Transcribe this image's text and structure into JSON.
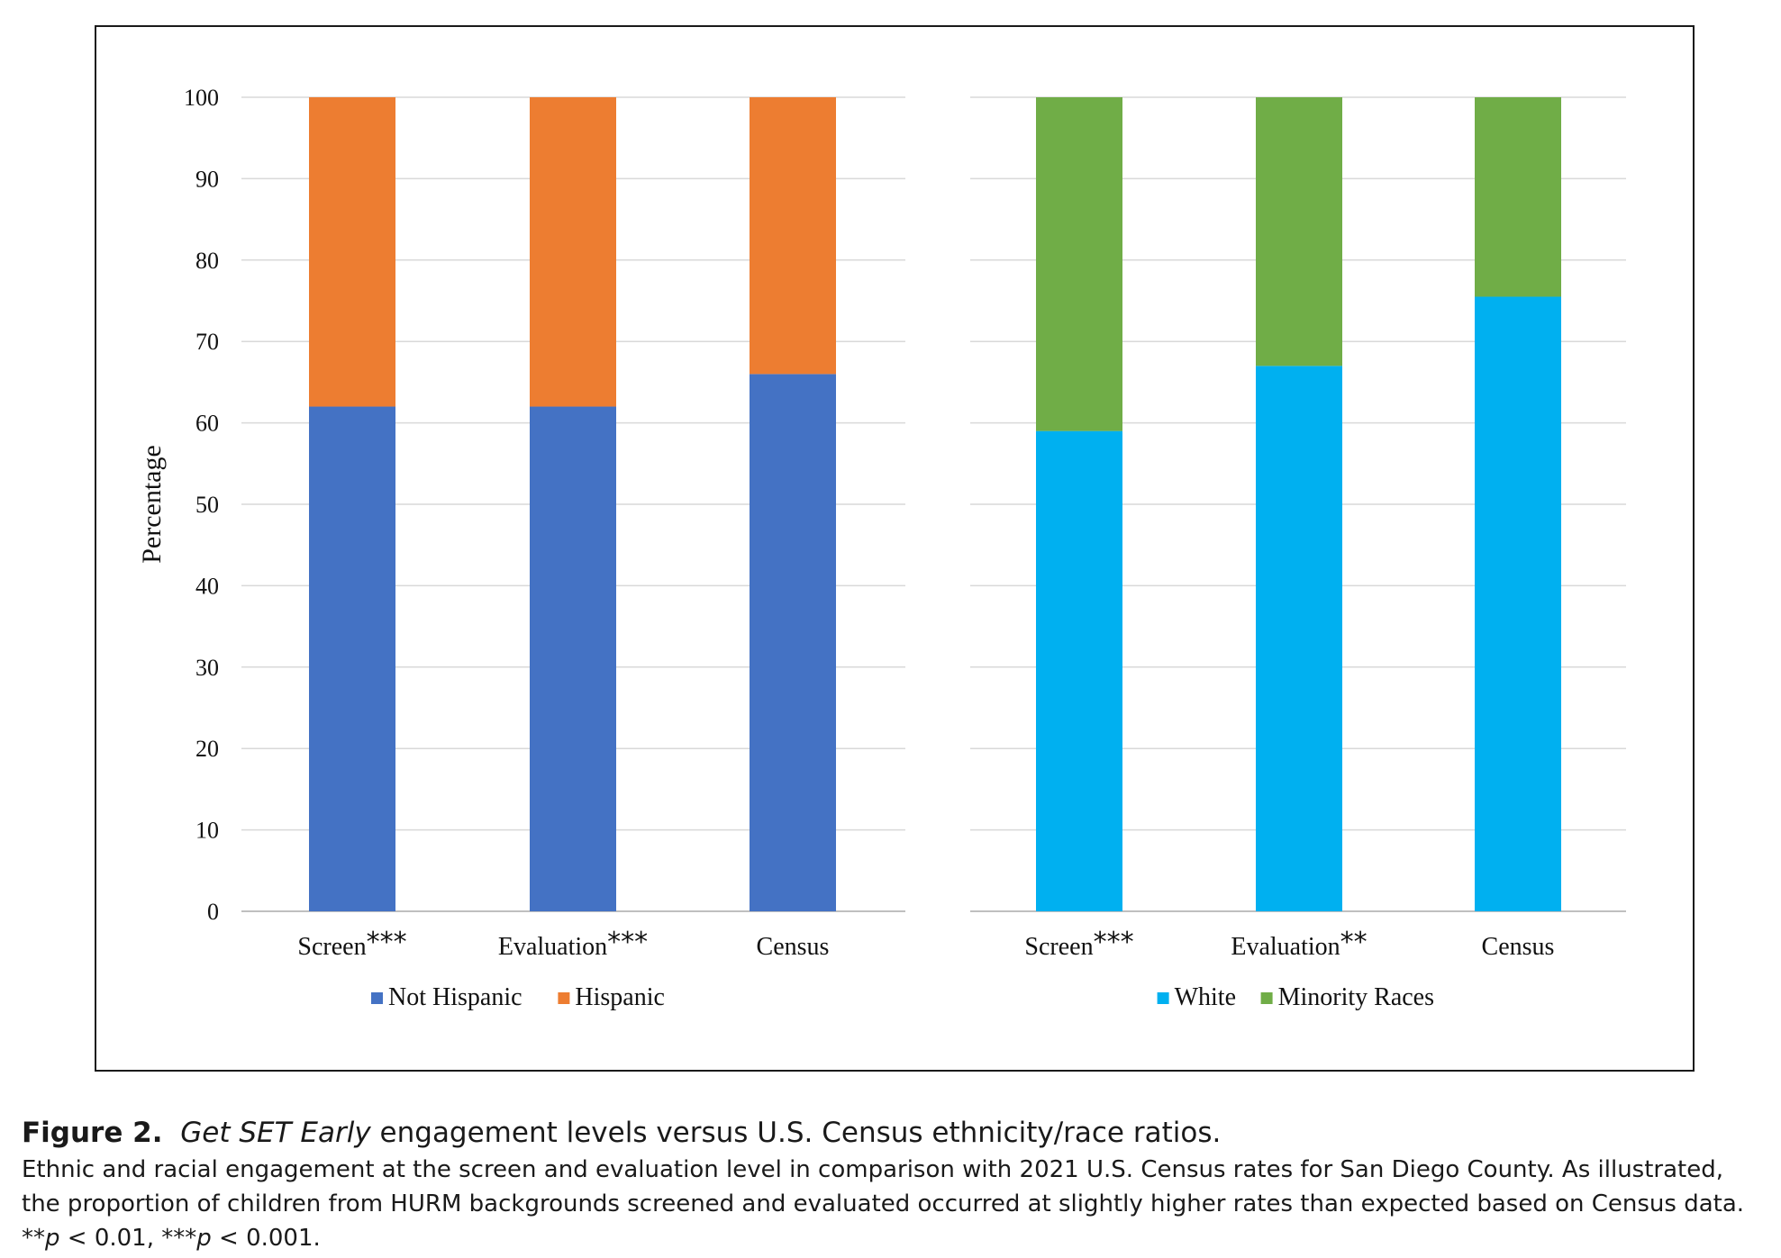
{
  "chart_data": [
    {
      "type": "bar",
      "stacked": true,
      "categories": [
        "Screen",
        "Evaluation",
        "Census"
      ],
      "category_markers": [
        "***",
        "***",
        ""
      ],
      "series": [
        {
          "name": "Not Hispanic",
          "values": [
            62,
            62,
            66
          ],
          "color": "#4472C4"
        },
        {
          "name": "Hispanic",
          "values": [
            38,
            38,
            34
          ],
          "color": "#ED7D31"
        }
      ],
      "ylabel": "Percentage",
      "ylim": [
        0,
        100
      ],
      "yticks": [
        0,
        10,
        20,
        30,
        40,
        50,
        60,
        70,
        80,
        90,
        100
      ],
      "grid": true,
      "legend": "bottom"
    },
    {
      "type": "bar",
      "stacked": true,
      "categories": [
        "Screen",
        "Evaluation",
        "Census"
      ],
      "category_markers": [
        "***",
        "**",
        ""
      ],
      "series": [
        {
          "name": "White",
          "values": [
            59,
            67,
            75.5
          ],
          "color": "#00B0F0"
        },
        {
          "name": "Minority Races",
          "values": [
            41,
            33,
            24.5
          ],
          "color": "#70AD47"
        }
      ],
      "ylim": [
        0,
        100
      ],
      "grid": true,
      "legend": "bottom"
    }
  ],
  "caption": {
    "label": "Figure 2.",
    "title_italic": "Get SET Early",
    "title_rest": " engagement levels versus U.S. Census ethnicity/race ratios.",
    "body": "Ethnic and racial engagement at the screen and evaluation level in comparison with 2021 U.S. Census rates for San Diego County. As illustrated, the proportion of children from HURM backgrounds screened and evaluated occurred at slightly higher rates than expected based on Census data.",
    "note_1_stars": "**",
    "note_1_p": "p",
    "note_1_rest": " < 0.01, ",
    "note_2_stars": "***",
    "note_2_p": "p",
    "note_2_rest": " < 0.001."
  }
}
